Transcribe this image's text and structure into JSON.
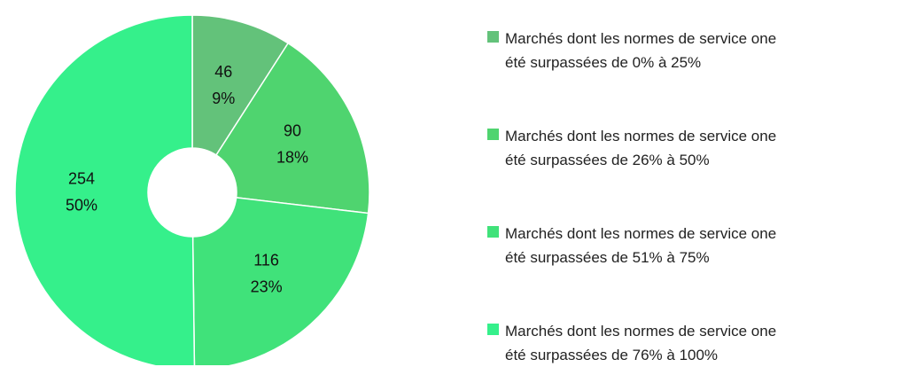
{
  "chart_data": {
    "type": "donut",
    "series": [
      {
        "name": "Marchés dont les normes de service one\nété surpassées de 0% à 25%",
        "color": "#63c27a"
      },
      {
        "name": "Marchés dont les normes de service one\nété surpassées de 26% à 50%",
        "color": "#4fd46f"
      },
      {
        "name": "Marchés dont les normes de service one\nété surpassées de 51% à 75%",
        "color": "#40e27a"
      },
      {
        "name": "Marchés dont les normes de service one\nété surpassées de 76% à 100%",
        "color": "#35f08b"
      }
    ],
    "values": [
      46,
      90,
      116,
      254
    ],
    "percentages": [
      9,
      18,
      23,
      50
    ],
    "percentage_labels": [
      "9%",
      "18%",
      "23%",
      "50%"
    ]
  }
}
